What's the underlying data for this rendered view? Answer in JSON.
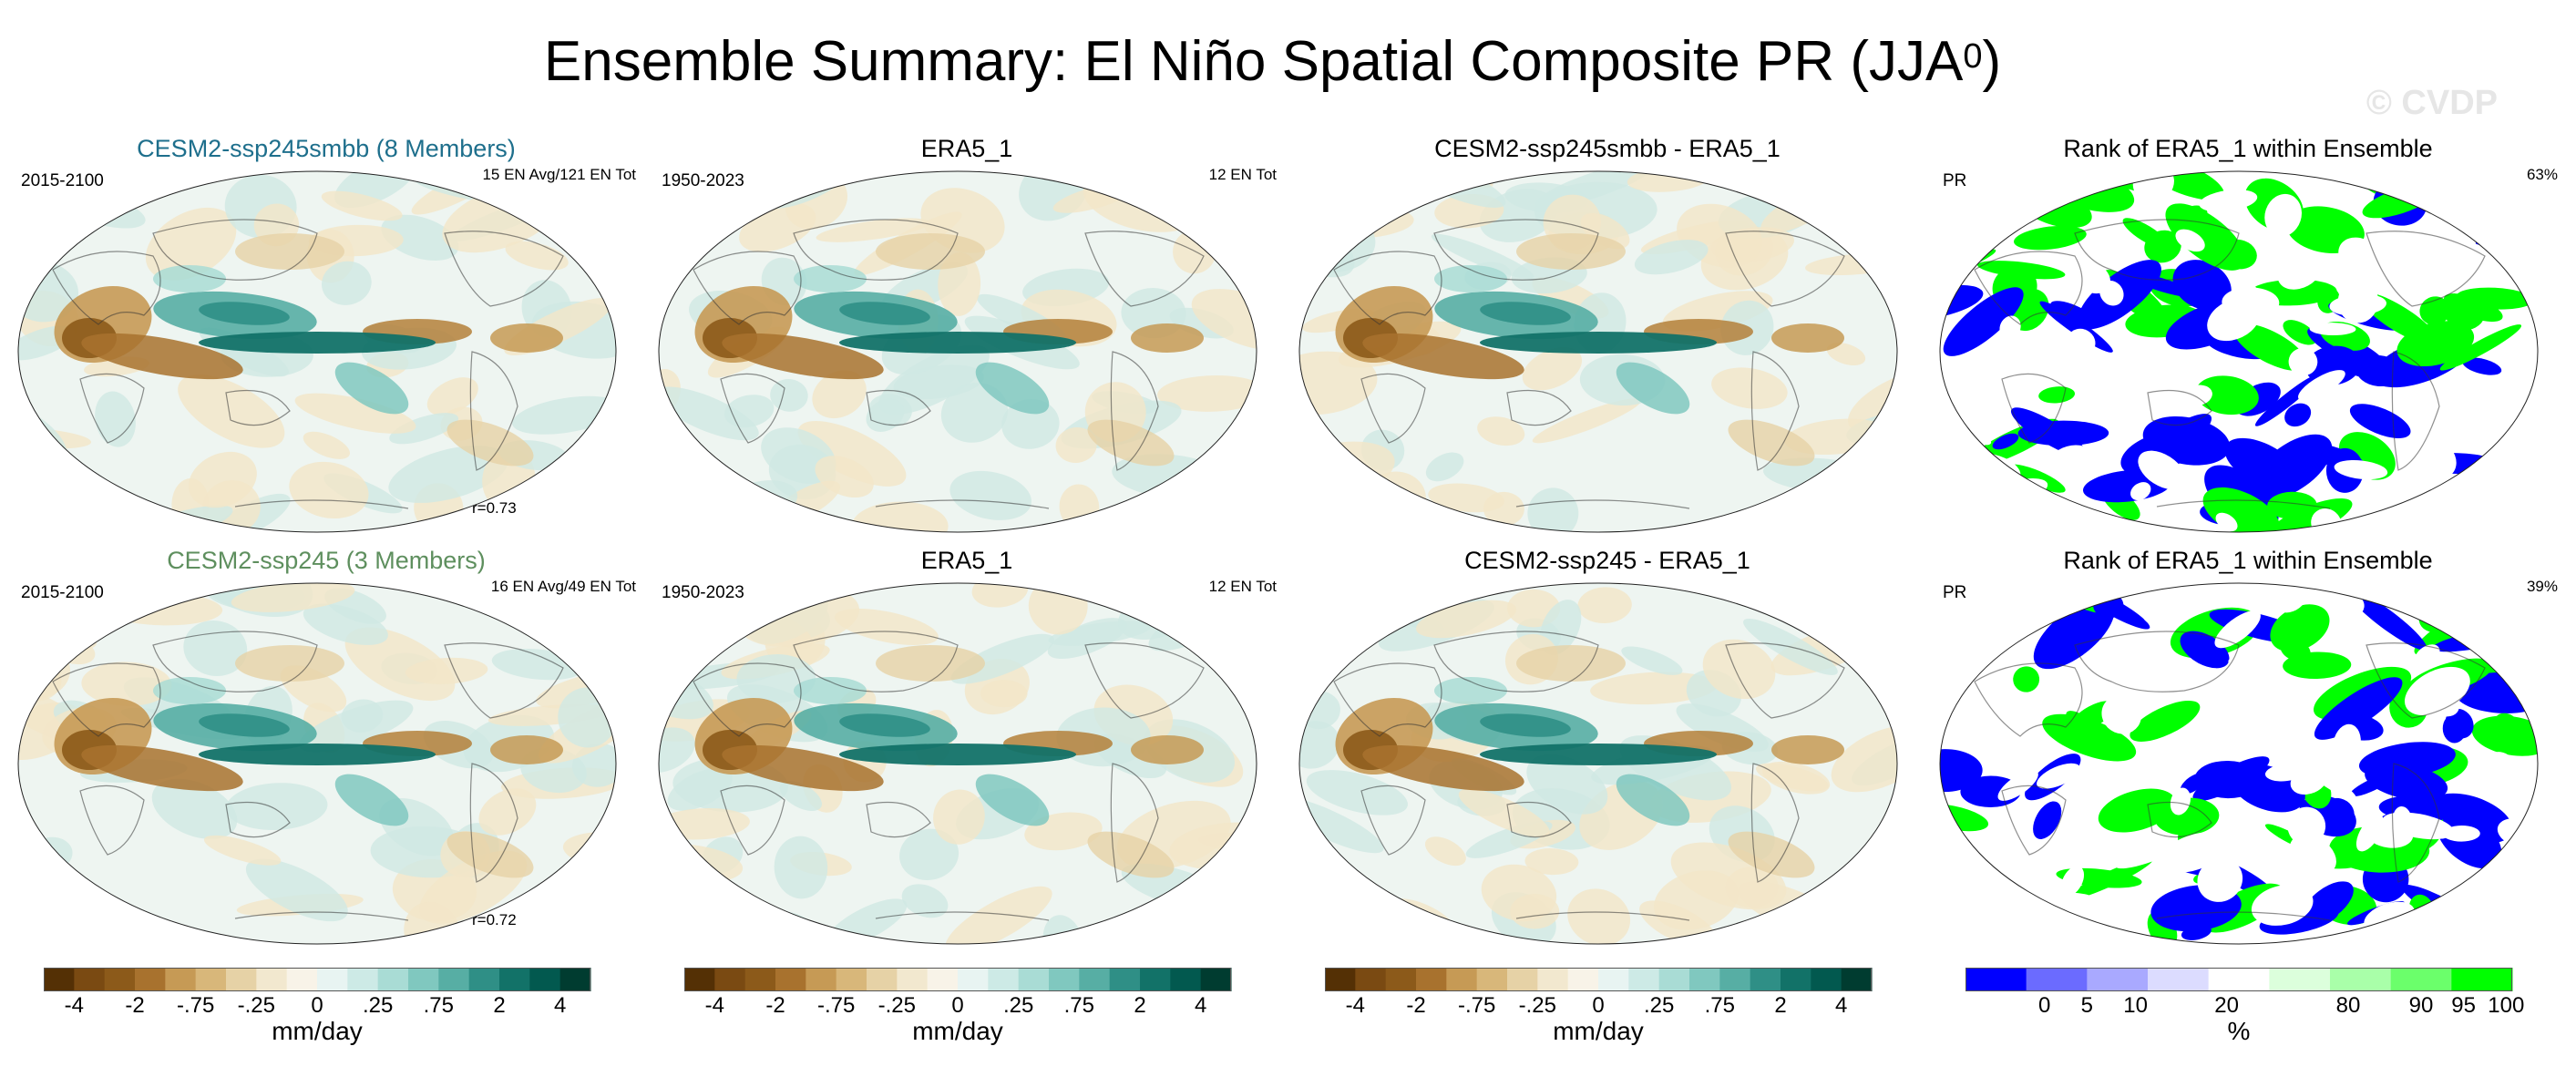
{
  "title_main": "Ensemble Summary: El Niño Spatial Composite PR (JJA",
  "title_sup": "0",
  "title_end": ")",
  "watermark": "© CVDP",
  "panels": [
    {
      "title": "CESM2-ssp245smbb (8 Members)",
      "left": "2015-2100",
      "right": "15 EN Avg/121 EN Tot",
      "corr": "r=0.73",
      "kind": "field"
    },
    {
      "title": "ERA5_1",
      "left": "1950-2023",
      "right": "12 EN Tot",
      "corr": "",
      "kind": "field"
    },
    {
      "title": "CESM2-ssp245smbb - ERA5_1",
      "left": "",
      "right": "",
      "corr": "",
      "kind": "field"
    },
    {
      "title": "Rank of ERA5_1 within Ensemble",
      "left": "PR",
      "right": "63%",
      "corr": "",
      "kind": "rank"
    },
    {
      "title": "CESM2-ssp245 (3 Members)",
      "left": "2015-2100",
      "right": "16 EN Avg/49 EN Tot",
      "corr": "r=0.72",
      "kind": "field"
    },
    {
      "title": "ERA5_1",
      "left": "1950-2023",
      "right": "12 EN Tot",
      "corr": "",
      "kind": "field"
    },
    {
      "title": "CESM2-ssp245 - ERA5_1",
      "left": "",
      "right": "",
      "corr": "",
      "kind": "field"
    },
    {
      "title": "Rank of ERA5_1 within Ensemble",
      "left": "PR",
      "right": "39%",
      "corr": "",
      "kind": "rank"
    }
  ],
  "colorbar_field": {
    "labels": [
      "-4",
      "-2",
      "-.75",
      "-.25",
      "0",
      ".25",
      ".75",
      "2",
      "4"
    ],
    "unit": "mm/day",
    "colors": [
      "#543005",
      "#7a4a12",
      "#8c5a1a",
      "#a8722e",
      "#c69a55",
      "#d8b77a",
      "#e6d2a6",
      "#f2e8cf",
      "#f8f3e8",
      "#e8f4f2",
      "#cdeae6",
      "#a9dcd5",
      "#80c8bf",
      "#57aea4",
      "#2f8f86",
      "#127268",
      "#02594f",
      "#003c30"
    ]
  },
  "colorbar_rank": {
    "labels": [
      "0",
      "5",
      "10",
      "20",
      "80",
      "90",
      "95",
      "100"
    ],
    "unit": "%",
    "colors": [
      "#0000ff",
      "#6b6bff",
      "#a9a9ff",
      "#dcdcff",
      "#ffffff",
      "#dcffdc",
      "#a9ffa9",
      "#6bff6b",
      "#00ff00"
    ]
  }
}
